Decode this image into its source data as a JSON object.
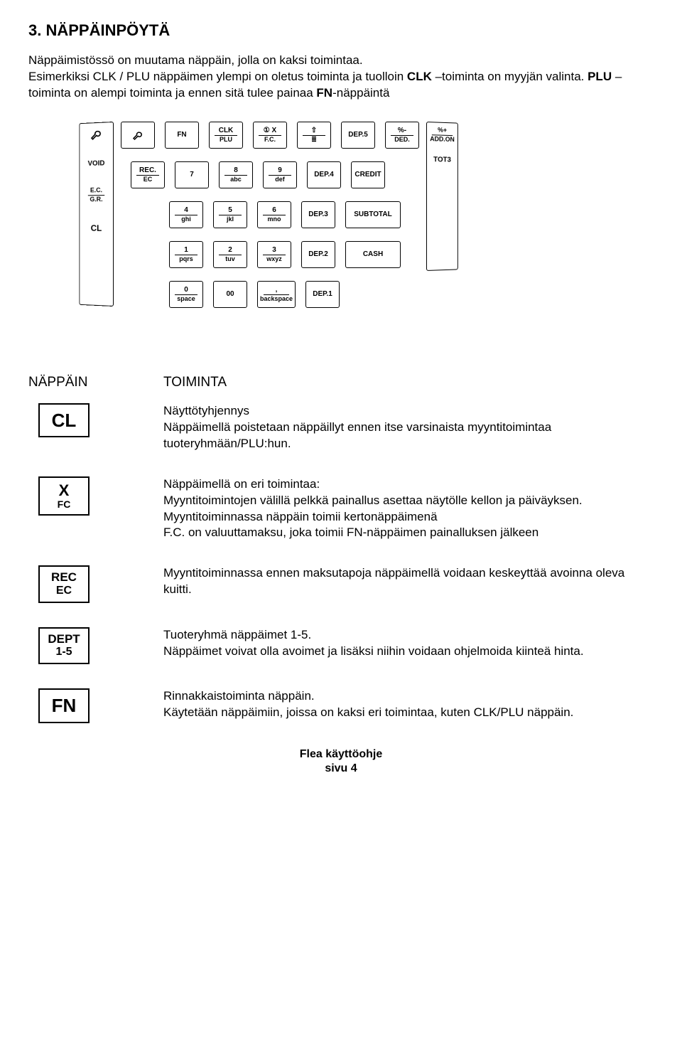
{
  "heading": "3. NÄPPÄINPÖYTÄ",
  "intro_parts": {
    "p1": "Näppäimistössö on muutama näppäin, jolla on kaksi toimintaa.",
    "p2a": "Esimerkiksi CLK / PLU näppäimen ylempi on oletus toiminta ja tuolloin ",
    "p2b_bold": "CLK",
    "p2c": " –toiminta on myyjän valinta. ",
    "p2d_bold": "PLU",
    "p2e": " –toiminta on alempi toiminta ja ennen sitä tulee painaa ",
    "p2f_bold": "FN",
    "p2g": "-näppäintä"
  },
  "keypad": {
    "left_panel": {
      "top": "VOID",
      "items": [
        "E.C.",
        "G.R.",
        "",
        "CL"
      ]
    },
    "right_panel": {
      "items": [
        "%+",
        "ADD.ON",
        "TOT3"
      ]
    },
    "rows": [
      [
        {
          "top": "🔑",
          "type": "icon-key"
        },
        {
          "top": "FN"
        },
        {
          "top": "CLK",
          "bot": "PLU"
        },
        {
          "top": "① X",
          "bot": "F.C."
        },
        {
          "top": "⇧",
          "bot": "≣"
        },
        {
          "top": "DEP.5"
        },
        {
          "top": "%-",
          "bot": "DED."
        }
      ],
      [
        {
          "top": "REC.",
          "bot": "EC"
        },
        {
          "top": "7"
        },
        {
          "top": "8",
          "bot": "abc"
        },
        {
          "top": "9",
          "bot": "def"
        },
        {
          "top": "DEP.4"
        },
        {
          "top": "CREDIT"
        }
      ],
      [
        {
          "top": "4",
          "bot": "ghi"
        },
        {
          "top": "5",
          "bot": "jkl"
        },
        {
          "top": "6",
          "bot": "mno"
        },
        {
          "top": "DEP.3"
        },
        {
          "top": "SUBTOTAL",
          "wide": true
        }
      ],
      [
        {
          "top": "1",
          "bot": "pqrs"
        },
        {
          "top": "2",
          "bot": "tuv"
        },
        {
          "top": "3",
          "bot": "wxyz"
        },
        {
          "top": "DEP.2"
        },
        {
          "top": "CASH",
          "wide": true
        }
      ],
      [
        {
          "top": "0",
          "bot": "space"
        },
        {
          "top": "00"
        },
        {
          "top": ",",
          "bot": "backspace"
        },
        {
          "top": "DEP.1"
        }
      ]
    ]
  },
  "table": {
    "header_key": "NÄPPÄIN",
    "header_func": "TOIMINTA",
    "rows": [
      {
        "key_main": "CL",
        "key_sub": "",
        "big": true,
        "desc": "Näyttötyhjennys\nNäppäimellä poistetaan näppäillyt ennen itse varsinaista myyntitoimintaa tuoteryhmään/PLU:hun."
      },
      {
        "key_main": "X",
        "key_sub": "FC",
        "desc": "Näppäimellä on eri toimintaa:\nMyyntitoimintojen välillä pelkkä painallus asettaa näytölle kellon ja päiväyksen.\nMyyntitoiminnassa näppäin toimii kertonäppäimenä\nF.C. on valuuttamaksu, joka toimii FN-näppäimen painalluksen jälkeen"
      },
      {
        "key_main": "REC",
        "key_sub": "EC",
        "med": true,
        "desc": "Myyntitoiminnassa ennen maksutapoja näppäimellä voidaan keskeyttää avoinna oleva kuitti."
      },
      {
        "key_main": "DEPT",
        "key_sub": "1-5",
        "med": true,
        "desc": "Tuoteryhmä näppäimet 1-5.\nNäppäimet voivat olla avoimet ja lisäksi niihin voidaan ohjelmoida kiinteä hinta."
      },
      {
        "key_main": "FN",
        "key_sub": "",
        "big": true,
        "desc": "Rinnakkaistoiminta näppäin.\nKäytetään näppäimiin, joissa on kaksi eri toimintaa, kuten CLK/PLU näppäin."
      }
    ]
  },
  "footer": {
    "line1": "Flea käyttöohje",
    "line2": "sivu 4"
  }
}
